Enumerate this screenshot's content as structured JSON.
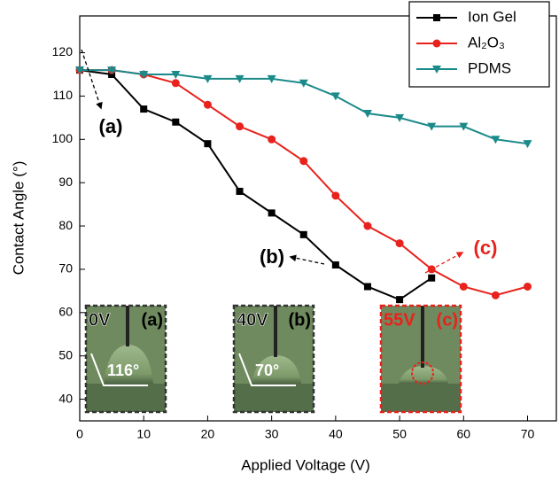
{
  "chart_data": {
    "type": "line",
    "x_label": "Applied Voltage (V)",
    "y_label": "Contact Angle (°)",
    "x": [
      0,
      5,
      10,
      15,
      20,
      25,
      30,
      35,
      40,
      45,
      50,
      55,
      60,
      65,
      70
    ],
    "series": [
      {
        "name": "Ion Gel",
        "color": "#000000",
        "marker": "square",
        "values": [
          116,
          115,
          107,
          104,
          99,
          88,
          83,
          78,
          71,
          66,
          63,
          68,
          null,
          null,
          null
        ]
      },
      {
        "name": "Al₂O₃",
        "color": "#e8221c",
        "marker": "circle",
        "values": [
          116,
          116,
          115,
          113,
          108,
          103,
          100,
          95,
          87,
          80,
          76,
          70,
          66,
          64,
          66
        ]
      },
      {
        "name": "PDMS",
        "color": "#1b8a8a",
        "marker": "triangle-down",
        "values": [
          116,
          116,
          115,
          115,
          114,
          114,
          114,
          113,
          110,
          106,
          105,
          103,
          103,
          100,
          99
        ]
      }
    ],
    "xlim": [
      0,
      74.5
    ],
    "ylim": [
      35,
      128.5
    ],
    "xticks": [
      0,
      10,
      20,
      30,
      40,
      50,
      60,
      70
    ],
    "yticks": [
      40,
      50,
      60,
      70,
      80,
      90,
      100,
      110,
      120
    ],
    "legend": "top-right",
    "annotations": [
      "(a)",
      "(b)",
      "(c)"
    ],
    "insets": [
      {
        "voltage": "0V",
        "label": "(a)",
        "angle": "116°"
      },
      {
        "voltage": "40V",
        "label": "(b)",
        "angle": "70°"
      },
      {
        "voltage": "55V",
        "label": "(c)"
      }
    ]
  }
}
